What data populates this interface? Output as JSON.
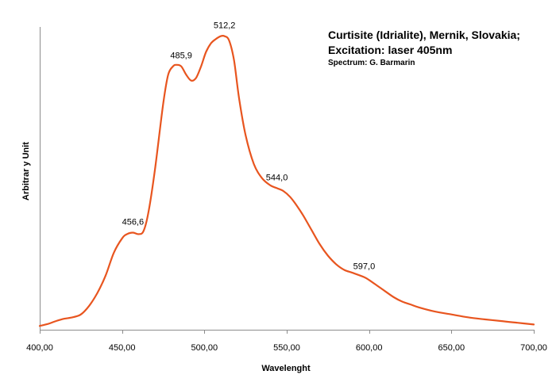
{
  "chart_data": {
    "type": "line",
    "title_lines": [
      "Curtisite (Idrialite), Mernik, Slovakia;",
      "Excitation: laser 405nm"
    ],
    "subtitle": "Spectrum: G. Barmarin",
    "xlabel": "Wavelenght",
    "ylabel": "Arbitrar y Unit",
    "xlim": [
      400,
      700
    ],
    "ylim": [
      0,
      100
    ],
    "x_ticks": [
      "400,00",
      "450,00",
      "500,00",
      "550,00",
      "600,00",
      "650,00",
      "700,00"
    ],
    "x_tick_values": [
      400,
      450,
      500,
      550,
      600,
      650,
      700
    ],
    "grid": false,
    "line_color": "#e8551f",
    "series": [
      {
        "x": [
          400,
          405,
          410,
          415,
          420,
          425,
          430,
          435,
          440,
          445,
          450,
          453,
          456.6,
          460,
          463,
          466,
          470,
          475,
          478,
          481,
          483,
          485.9,
          489,
          492,
          495,
          498,
          501,
          504,
          507,
          510,
          512.2,
          515,
          518,
          521,
          525,
          530,
          535,
          540,
          544,
          548,
          552,
          556,
          560,
          565,
          570,
          575,
          580,
          585,
          590,
          597,
          600,
          605,
          610,
          615,
          620,
          625,
          630,
          640,
          650,
          660,
          670,
          680,
          690,
          700
        ],
        "y": [
          0.5,
          1.2,
          2.2,
          3.0,
          3.5,
          4.5,
          7.5,
          12,
          18,
          26,
          31,
          32.5,
          33,
          32.5,
          33.5,
          40,
          55,
          78,
          88,
          91,
          91.5,
          91,
          88,
          86,
          87,
          91,
          96,
          99,
          100.5,
          101.5,
          101.5,
          100,
          93,
          80,
          67,
          57,
          52,
          49.5,
          48.5,
          47.5,
          45.5,
          42.5,
          39,
          34,
          29,
          25,
          22,
          20,
          19,
          17.5,
          16.5,
          14.5,
          12.5,
          10.5,
          9,
          8,
          7,
          5.5,
          4.5,
          3.5,
          2.8,
          2.2,
          1.6,
          1.0
        ]
      }
    ],
    "annotations": [
      {
        "x": 456.6,
        "y": 33,
        "text": "456,6"
      },
      {
        "x": 485.9,
        "y": 91,
        "text": "485,9"
      },
      {
        "x": 512.2,
        "y": 101.5,
        "text": "512,2"
      },
      {
        "x": 544.0,
        "y": 48.5,
        "text": "544,0"
      },
      {
        "x": 597.0,
        "y": 17.5,
        "text": "597,0"
      }
    ]
  }
}
